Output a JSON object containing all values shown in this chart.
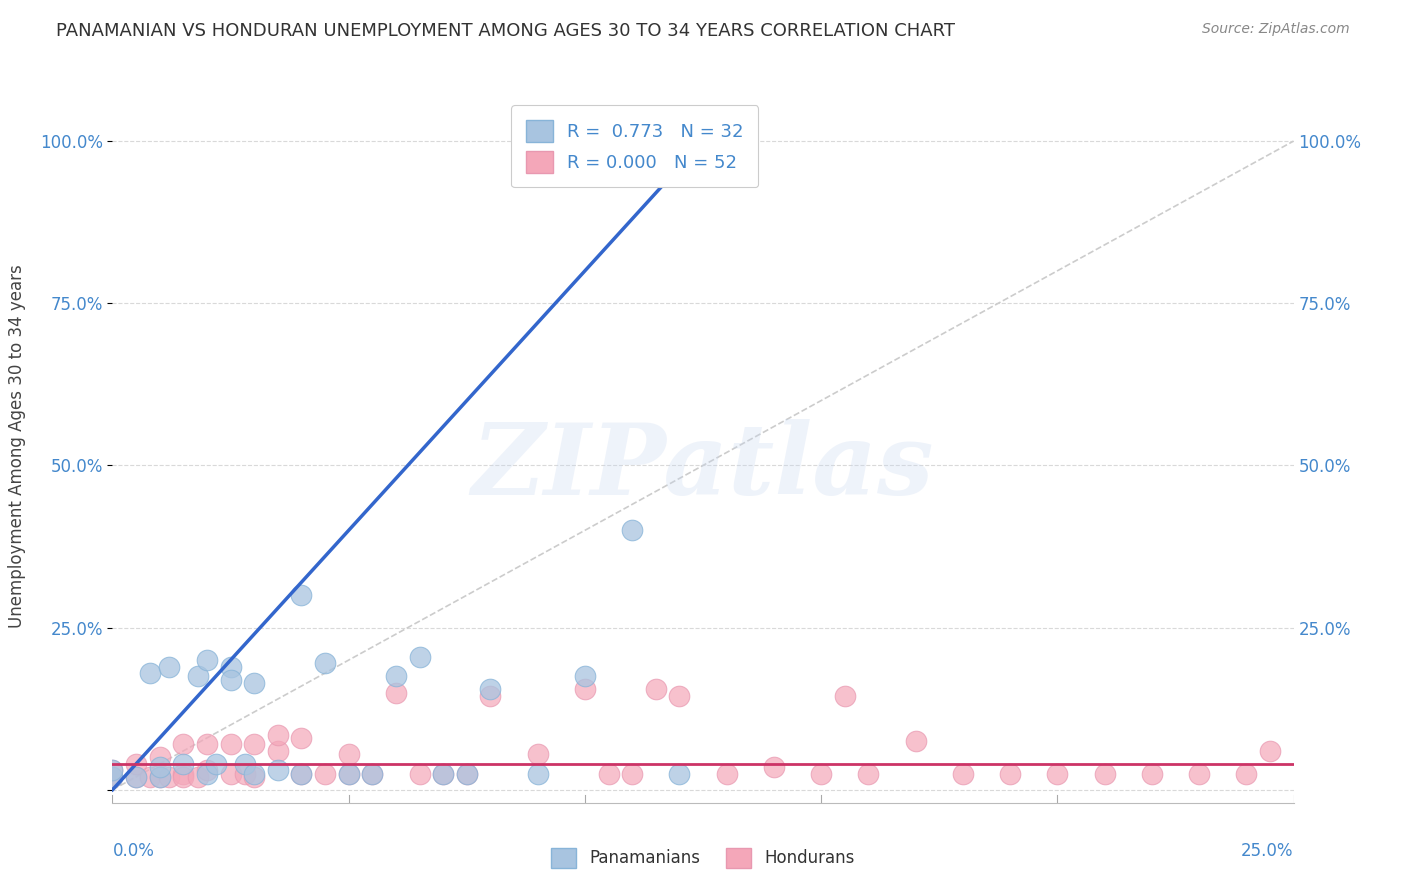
{
  "title": "PANAMANIAN VS HONDURAN UNEMPLOYMENT AMONG AGES 30 TO 34 YEARS CORRELATION CHART",
  "source": "Source: ZipAtlas.com",
  "ylabel": "Unemployment Among Ages 30 to 34 years",
  "xlim": [
    0.0,
    0.25
  ],
  "ylim": [
    -0.02,
    1.08
  ],
  "yticks": [
    0.0,
    0.25,
    0.5,
    0.75,
    1.0
  ],
  "ytick_labels": [
    "",
    "25.0%",
    "50.0%",
    "75.0%",
    "100.0%"
  ],
  "bg_color": "#ffffff",
  "grid_color": "#d0d0d0",
  "watermark_text": "ZIPatlas",
  "panama_color": "#a8c4e0",
  "honduras_color": "#f4a7b9",
  "panama_line_color": "#3366cc",
  "honduras_line_color": "#cc3366",
  "diagonal_color": "#cccccc",
  "panama_line_x": [
    0.0,
    0.125
  ],
  "panama_line_y": [
    0.0,
    1.0
  ],
  "honduras_line_y": 0.04,
  "panama_scatter_x": [
    0.0,
    0.0,
    0.005,
    0.008,
    0.01,
    0.01,
    0.012,
    0.015,
    0.018,
    0.02,
    0.02,
    0.022,
    0.025,
    0.025,
    0.028,
    0.03,
    0.03,
    0.035,
    0.04,
    0.04,
    0.045,
    0.05,
    0.055,
    0.06,
    0.065,
    0.07,
    0.075,
    0.08,
    0.09,
    0.1,
    0.11,
    0.12
  ],
  "panama_scatter_y": [
    0.02,
    0.03,
    0.02,
    0.18,
    0.02,
    0.035,
    0.19,
    0.04,
    0.175,
    0.025,
    0.2,
    0.04,
    0.19,
    0.17,
    0.04,
    0.025,
    0.165,
    0.03,
    0.3,
    0.025,
    0.195,
    0.025,
    0.025,
    0.175,
    0.205,
    0.025,
    0.025,
    0.155,
    0.025,
    0.175,
    0.4,
    0.025
  ],
  "honduras_scatter_x": [
    0.0,
    0.0,
    0.005,
    0.005,
    0.008,
    0.01,
    0.01,
    0.012,
    0.015,
    0.015,
    0.015,
    0.018,
    0.02,
    0.02,
    0.025,
    0.025,
    0.028,
    0.03,
    0.03,
    0.035,
    0.035,
    0.04,
    0.04,
    0.045,
    0.05,
    0.05,
    0.055,
    0.06,
    0.065,
    0.07,
    0.075,
    0.08,
    0.09,
    0.1,
    0.105,
    0.11,
    0.115,
    0.12,
    0.13,
    0.14,
    0.15,
    0.155,
    0.16,
    0.17,
    0.18,
    0.19,
    0.2,
    0.21,
    0.22,
    0.23,
    0.24,
    0.245
  ],
  "honduras_scatter_y": [
    0.02,
    0.03,
    0.02,
    0.04,
    0.02,
    0.02,
    0.05,
    0.02,
    0.025,
    0.07,
    0.02,
    0.02,
    0.03,
    0.07,
    0.025,
    0.07,
    0.025,
    0.02,
    0.07,
    0.06,
    0.085,
    0.025,
    0.08,
    0.025,
    0.025,
    0.055,
    0.025,
    0.15,
    0.025,
    0.025,
    0.025,
    0.145,
    0.055,
    0.155,
    0.025,
    0.025,
    0.155,
    0.145,
    0.025,
    0.035,
    0.025,
    0.145,
    0.025,
    0.075,
    0.025,
    0.025,
    0.025,
    0.025,
    0.025,
    0.025,
    0.025,
    0.06
  ]
}
